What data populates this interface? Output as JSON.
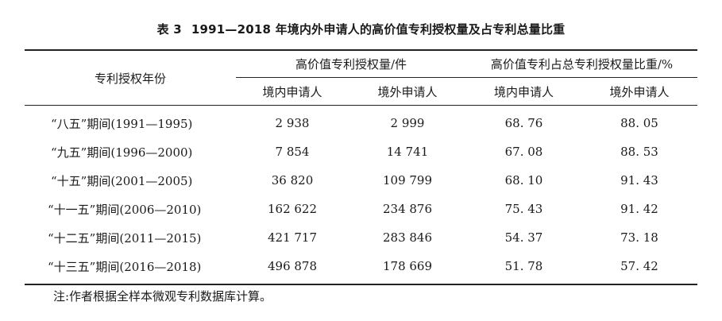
{
  "table": {
    "table_number": "表 3",
    "title": "1991—2018 年境内外申请人的高价值专利授权量及占专利总量比重",
    "row_header": "专利授权年份",
    "group_headers": [
      "高价值专利授权量/件",
      "高价值专利占总专利授权量比重/%"
    ],
    "sub_headers": [
      "境内申请人",
      "境外申请人",
      "境内申请人",
      "境外申请人"
    ],
    "rows": [
      {
        "period": "“八五”期间(1991—1995)",
        "cells": [
          "2 938",
          "2 999",
          "68. 76",
          "88. 05"
        ]
      },
      {
        "period": "“九五”期间(1996—2000)",
        "cells": [
          "7 854",
          "14 741",
          "67. 08",
          "88. 53"
        ]
      },
      {
        "period": "“十五”期间(2001—2005)",
        "cells": [
          "36 820",
          "109 799",
          "68. 10",
          "91. 43"
        ]
      },
      {
        "period": "“十一五”期间(2006—2010)",
        "cells": [
          "162 622",
          "234 876",
          "75. 43",
          "91. 42"
        ]
      },
      {
        "period": "“十二五”期间(2011—2015)",
        "cells": [
          "421 717",
          "283 846",
          "54. 37",
          "73. 18"
        ]
      },
      {
        "period": "“十三五”期间(2016—2018)",
        "cells": [
          "496 878",
          "178 669",
          "51. 78",
          "57. 42"
        ]
      }
    ],
    "note": "注:作者根据全样本微观专利数据库计算。"
  }
}
